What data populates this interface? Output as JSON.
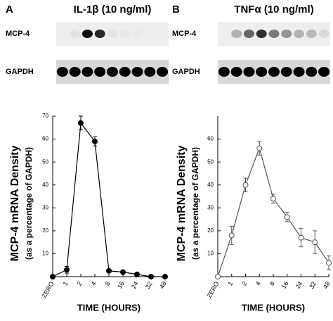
{
  "chart_data": [
    {
      "type": "line",
      "panel": "A",
      "treatment": "IL-1β (10 ng/ml)",
      "blot_labels": [
        "MCP-4",
        "GAPDH"
      ],
      "ylabel": "MCP-4 mRNA Density",
      "ylabel_sub": "(as a percentage of GAPDH)",
      "xlabel": "TIME (HOURS)",
      "categories": [
        "ZERO",
        "1",
        "2",
        "4",
        "8",
        "16",
        "24",
        "32",
        "48"
      ],
      "series": [
        {
          "color": "#000000",
          "marker": "filled",
          "values": [
            0,
            3,
            67,
            59,
            2.5,
            2,
            1,
            0,
            0
          ],
          "errors": [
            0,
            1.5,
            3,
            2,
            0.5,
            0.5,
            0.5,
            0,
            0
          ]
        }
      ],
      "ylim": [
        0,
        70
      ],
      "yticks": [
        10,
        20,
        30,
        40,
        50,
        60,
        70
      ]
    },
    {
      "type": "line",
      "panel": "B",
      "treatment": "TNFα (10 ng/ml)",
      "blot_labels": [
        "MCP-4",
        "GAPDH"
      ],
      "ylabel": "MCP-4 mRNA Density",
      "ylabel_sub": "(as a percentage of GAPDH)",
      "xlabel": "TIME (HOURS)",
      "categories": [
        "ZERO",
        "1",
        "2",
        "4",
        "8",
        "16",
        "24",
        "32",
        "48"
      ],
      "series": [
        {
          "color": "#555555",
          "marker": "open",
          "values": [
            0,
            18,
            40,
            56,
            34,
            26,
            17,
            15,
            6
          ],
          "errors": [
            0,
            4,
            3,
            3,
            2,
            2,
            4,
            5,
            3
          ]
        }
      ],
      "ylim": [
        0,
        70
      ],
      "yticks": [
        10,
        20,
        30,
        40,
        50,
        60
      ]
    }
  ]
}
